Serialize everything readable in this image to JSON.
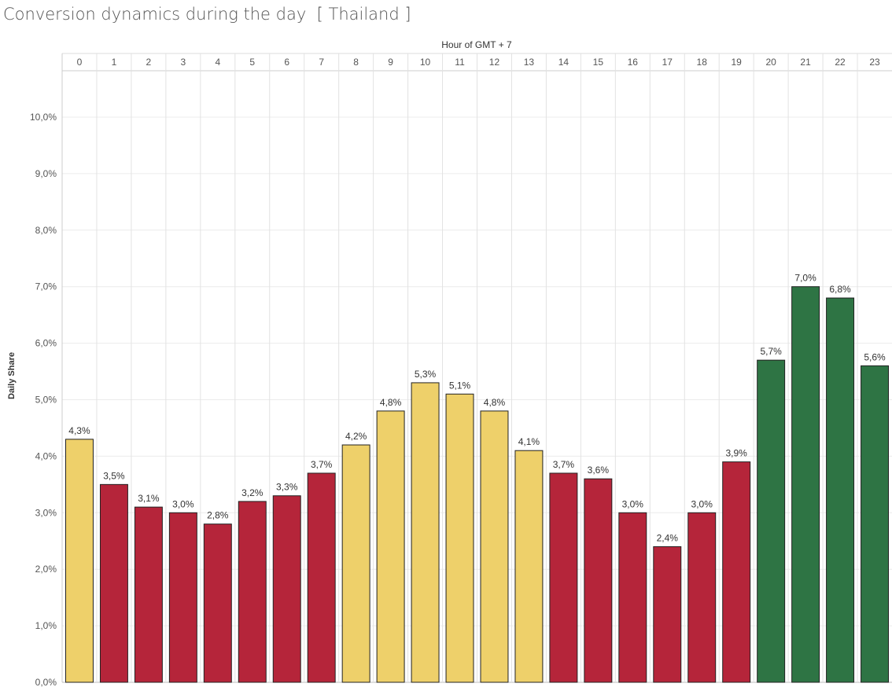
{
  "title": "Conversion dynamics during the day",
  "subtitle": "[ Thailand ]",
  "chart_data": {
    "type": "bar",
    "title": "Conversion dynamics during the day  [ Thailand ]",
    "xlabel": "Hour of GMT + 7",
    "ylabel": "Daily Share",
    "categories": [
      "0",
      "1",
      "2",
      "3",
      "4",
      "5",
      "6",
      "7",
      "8",
      "9",
      "10",
      "11",
      "12",
      "13",
      "14",
      "15",
      "16",
      "17",
      "18",
      "19",
      "20",
      "21",
      "22",
      "23"
    ],
    "values": [
      4.3,
      3.5,
      3.1,
      3.0,
      2.8,
      3.2,
      3.3,
      3.7,
      4.2,
      4.8,
      5.3,
      5.1,
      4.8,
      4.1,
      3.7,
      3.6,
      3.0,
      2.4,
      3.0,
      3.9,
      5.7,
      7.0,
      6.8,
      5.6
    ],
    "value_labels": [
      "4,3%",
      "3,5%",
      "3,1%",
      "3,0%",
      "2,8%",
      "3,2%",
      "3,3%",
      "3,7%",
      "4,2%",
      "4,8%",
      "5,3%",
      "5,1%",
      "4,8%",
      "4,1%",
      "3,7%",
      "3,6%",
      "3,0%",
      "2,4%",
      "3,0%",
      "3,9%",
      "5,7%",
      "7,0%",
      "6,8%",
      "5,6%"
    ],
    "bar_colors": [
      "#EED06A",
      "#B5253A",
      "#B5253A",
      "#B5253A",
      "#B5253A",
      "#B5253A",
      "#B5253A",
      "#B5253A",
      "#EED06A",
      "#EED06A",
      "#EED06A",
      "#EED06A",
      "#EED06A",
      "#EED06A",
      "#B5253A",
      "#B5253A",
      "#B5253A",
      "#B5253A",
      "#B5253A",
      "#B5253A",
      "#2E7444",
      "#2E7444",
      "#2E7444",
      "#2E7444"
    ],
    "ylim": [
      0,
      10.8
    ],
    "yticks": [
      0,
      1,
      2,
      3,
      4,
      5,
      6,
      7,
      8,
      9,
      10
    ],
    "ytick_labels": [
      "0,0%",
      "1,0%",
      "2,0%",
      "3,0%",
      "4,0%",
      "5,0%",
      "6,0%",
      "7,0%",
      "8,0%",
      "9,0%",
      "10,0%"
    ],
    "grid": true,
    "x_axis_position": "top"
  }
}
